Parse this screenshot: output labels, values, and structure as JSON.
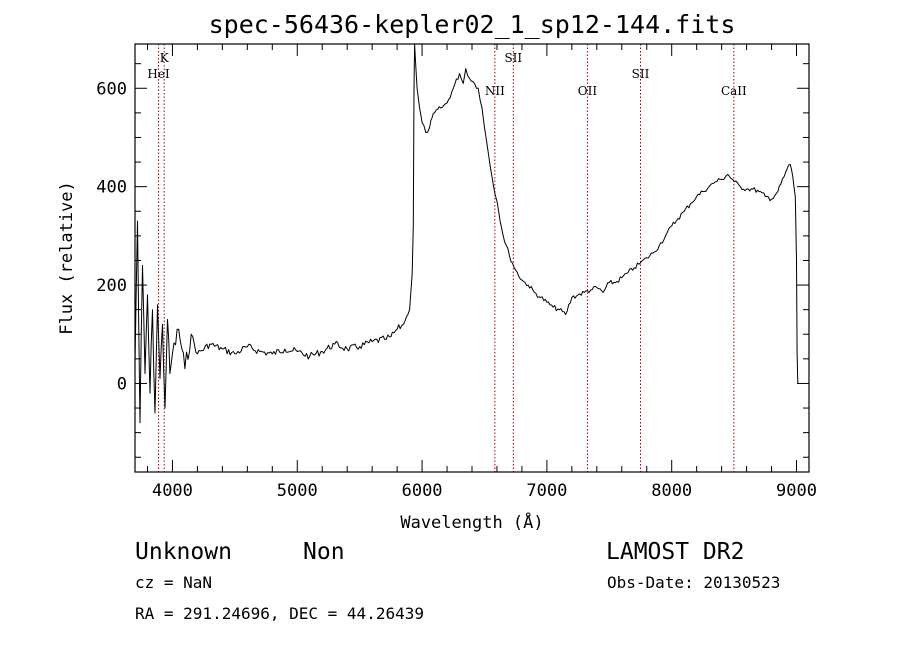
{
  "chart_data": {
    "type": "line",
    "title": "spec-56436-kepler02_1_sp12-144.fits",
    "xlabel": "Wavelength (Å)",
    "ylabel": "Flux (relative)",
    "xlim": [
      3700,
      9100
    ],
    "ylim": [
      -180,
      690
    ],
    "x_ticks": [
      4000,
      5000,
      6000,
      7000,
      8000,
      9000
    ],
    "y_ticks": [
      0,
      200,
      400,
      600
    ],
    "grid": false,
    "series": [
      {
        "x": [
          3700,
          3720,
          3740,
          3760,
          3780,
          3800,
          3820,
          3840,
          3860,
          3880,
          3900,
          3920,
          3940,
          3960,
          3980,
          4000,
          4050,
          4100,
          4150,
          4200,
          4300,
          4400,
          4500,
          4600,
          4700,
          4800,
          4900,
          5000,
          5100,
          5200,
          5300,
          5400,
          5500,
          5600,
          5700,
          5750,
          5800,
          5850,
          5900,
          5920,
          5930,
          5935,
          5940,
          5960,
          5980,
          6000,
          6030,
          6060,
          6080,
          6100,
          6150,
          6200,
          6250,
          6300,
          6330,
          6350,
          6380,
          6420,
          6450,
          6480,
          6500,
          6530,
          6560,
          6600,
          6650,
          6700,
          6750,
          6800,
          6850,
          6900,
          6950,
          7000,
          7050,
          7100,
          7150,
          7200,
          7250,
          7300,
          7350,
          7400,
          7450,
          7500,
          7550,
          7600,
          7650,
          7700,
          7750,
          7800,
          7850,
          7900,
          7950,
          8000,
          8050,
          8100,
          8150,
          8200,
          8250,
          8300,
          8350,
          8400,
          8450,
          8500,
          8550,
          8600,
          8650,
          8700,
          8750,
          8800,
          8850,
          8900,
          8930,
          8950,
          8970,
          8990,
          9000,
          9005,
          9010
        ],
        "y": [
          40,
          330,
          -80,
          240,
          20,
          180,
          -20,
          150,
          -60,
          160,
          10,
          120,
          -50,
          130,
          20,
          60,
          110,
          30,
          100,
          60,
          80,
          70,
          60,
          75,
          65,
          60,
          70,
          65,
          55,
          65,
          80,
          70,
          75,
          85,
          90,
          95,
          110,
          120,
          150,
          220,
          320,
          600,
          690,
          600,
          560,
          530,
          510,
          520,
          540,
          550,
          560,
          570,
          600,
          630,
          610,
          640,
          620,
          610,
          600,
          560,
          520,
          470,
          420,
          370,
          300,
          260,
          230,
          210,
          200,
          185,
          175,
          165,
          155,
          150,
          140,
          175,
          180,
          185,
          190,
          195,
          185,
          205,
          205,
          215,
          225,
          235,
          245,
          255,
          265,
          280,
          300,
          320,
          335,
          350,
          365,
          380,
          390,
          400,
          410,
          415,
          425,
          410,
          400,
          395,
          395,
          390,
          380,
          375,
          390,
          420,
          440,
          445,
          420,
          380,
          250,
          60,
          0
        ]
      }
    ],
    "line_marks": [
      {
        "label": "K",
        "x": 3934,
        "label_row": 1
      },
      {
        "label": "HeI",
        "x": 3889,
        "label_row": 2
      },
      {
        "label": "SII",
        "x": 6731,
        "label_row": 1
      },
      {
        "label": "NII",
        "x": 6583,
        "label_row": 3
      },
      {
        "label": "OII",
        "x": 7325,
        "label_row": 3
      },
      {
        "label": "SII",
        "x": 7750,
        "label_row": 2
      },
      {
        "label": "CaII",
        "x": 8498,
        "label_row": 3
      }
    ],
    "line_mark_color": "#a00000"
  },
  "info": {
    "class_label": "Unknown",
    "subclass_label": "Non",
    "survey_label": "LAMOST DR2",
    "cz_text": "cz = NaN",
    "obs_date_text": "Obs-Date: 20130523",
    "coords_text": "RA = 291.24696, DEC =  44.26439"
  }
}
